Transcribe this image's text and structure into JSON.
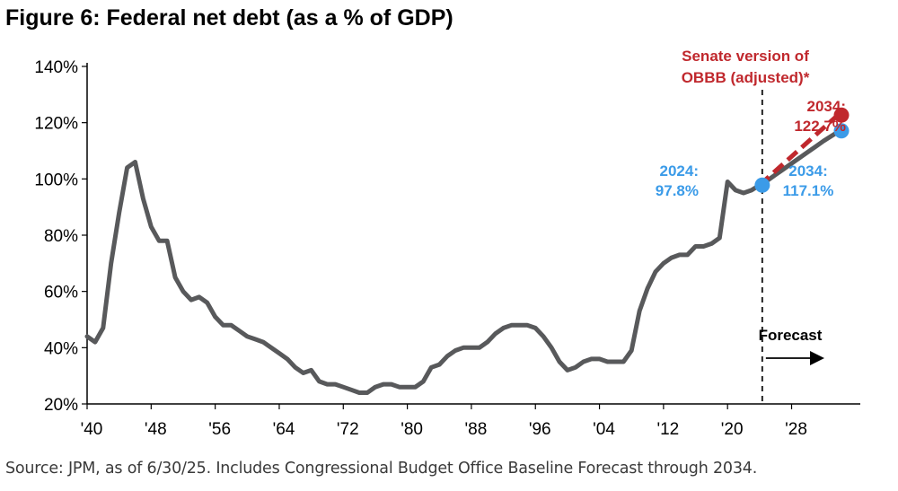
{
  "title": "Figure 6: Federal net debt (as a % of GDP)",
  "source": "Source: JPM, as of 6/30/25. Includes Congressional Budget Office Baseline Forecast through 2034.",
  "colors": {
    "history_line": "#58595b",
    "senate_line": "#c0282d",
    "baseline_marker": "#3b9be8",
    "axis": "#000000"
  },
  "chart_data": {
    "type": "line",
    "title": "Figure 6: Federal net debt (as a % of GDP)",
    "xlabel": "",
    "ylabel": "",
    "xlim": [
      1940,
      2034
    ],
    "ylim": [
      20,
      140
    ],
    "x_ticks": [
      1940,
      1948,
      1956,
      1964,
      1972,
      1980,
      1988,
      1996,
      2004,
      2012,
      2020,
      2028
    ],
    "x_tick_labels": [
      "'40",
      "'48",
      "'56",
      "'64",
      "'72",
      "'80",
      "'88",
      "'96",
      "'04",
      "'12",
      "'20",
      "'28"
    ],
    "y_ticks": [
      20,
      40,
      60,
      80,
      100,
      120,
      140
    ],
    "y_tick_labels": [
      "20%",
      "40%",
      "60%",
      "80%",
      "100%",
      "120%",
      "140%"
    ],
    "grid": false,
    "forecast_start": 2024,
    "series": [
      {
        "name": "",
        "x": [
          1940,
          1941,
          1942,
          1943,
          1944,
          1945,
          1946,
          1947,
          1948,
          1949,
          1950,
          1951,
          1952,
          1953,
          1954,
          1955,
          1956,
          1957,
          1958,
          1959,
          1960,
          1961,
          1962,
          1963,
          1964,
          1965,
          1966,
          1967,
          1968,
          1969,
          1970,
          1971,
          1972,
          1973,
          1974,
          1975,
          1976,
          1977,
          1978,
          1979,
          1980,
          1981,
          1982,
          1983,
          1984,
          1985,
          1986,
          1987,
          1988,
          1989,
          1990,
          1991,
          1992,
          1993,
          1994,
          1995,
          1996,
          1997,
          1998,
          1999,
          2000,
          2001,
          2002,
          2003,
          2004,
          2005,
          2006,
          2007,
          2008,
          2009,
          2010,
          2011,
          2012,
          2013,
          2014,
          2015,
          2016,
          2017,
          2018,
          2019,
          2020,
          2021,
          2022,
          2023,
          2024,
          2025,
          2026,
          2027,
          2028,
          2029,
          2030,
          2031,
          2032,
          2033,
          2034
        ],
        "values": [
          44,
          42,
          47,
          70,
          88,
          104,
          106,
          93,
          83,
          78,
          78,
          65,
          60,
          57,
          58,
          56,
          51,
          48,
          48,
          46,
          44,
          43,
          42,
          40,
          38,
          36,
          33,
          31,
          32,
          28,
          27,
          27,
          26,
          25,
          24,
          24,
          26,
          27,
          27,
          26,
          26,
          26,
          28,
          33,
          34,
          37,
          39,
          40,
          40,
          40,
          42,
          45,
          47,
          48,
          48,
          48,
          47,
          44,
          40,
          35,
          32,
          33,
          35,
          36,
          36,
          35,
          35,
          35,
          39,
          53,
          61,
          67,
          70,
          72,
          73,
          73,
          76,
          76,
          77,
          79,
          99,
          96,
          95,
          96,
          97.8,
          99.5,
          101.5,
          103.5,
          105.5,
          107.5,
          109.5,
          111.5,
          113.5,
          115.3,
          117.1
        ]
      },
      {
        "name": "Senate version of OBBB (adjusted)*",
        "x": [
          2024,
          2034
        ],
        "values": [
          97.8,
          122.7
        ]
      }
    ],
    "annotations": [
      {
        "text_lines": [
          "Senate version of",
          "OBBB (adjusted)*"
        ]
      },
      {
        "text_lines": [
          "2034:",
          "122.7%"
        ],
        "x": 2034,
        "y": 122.7
      },
      {
        "text_lines": [
          "2024:",
          "97.8%"
        ],
        "x": 2024,
        "y": 97.8
      },
      {
        "text_lines": [
          "2034:",
          "117.1%"
        ],
        "x": 2034,
        "y": 117.1
      },
      {
        "text": "Forecast"
      }
    ]
  }
}
